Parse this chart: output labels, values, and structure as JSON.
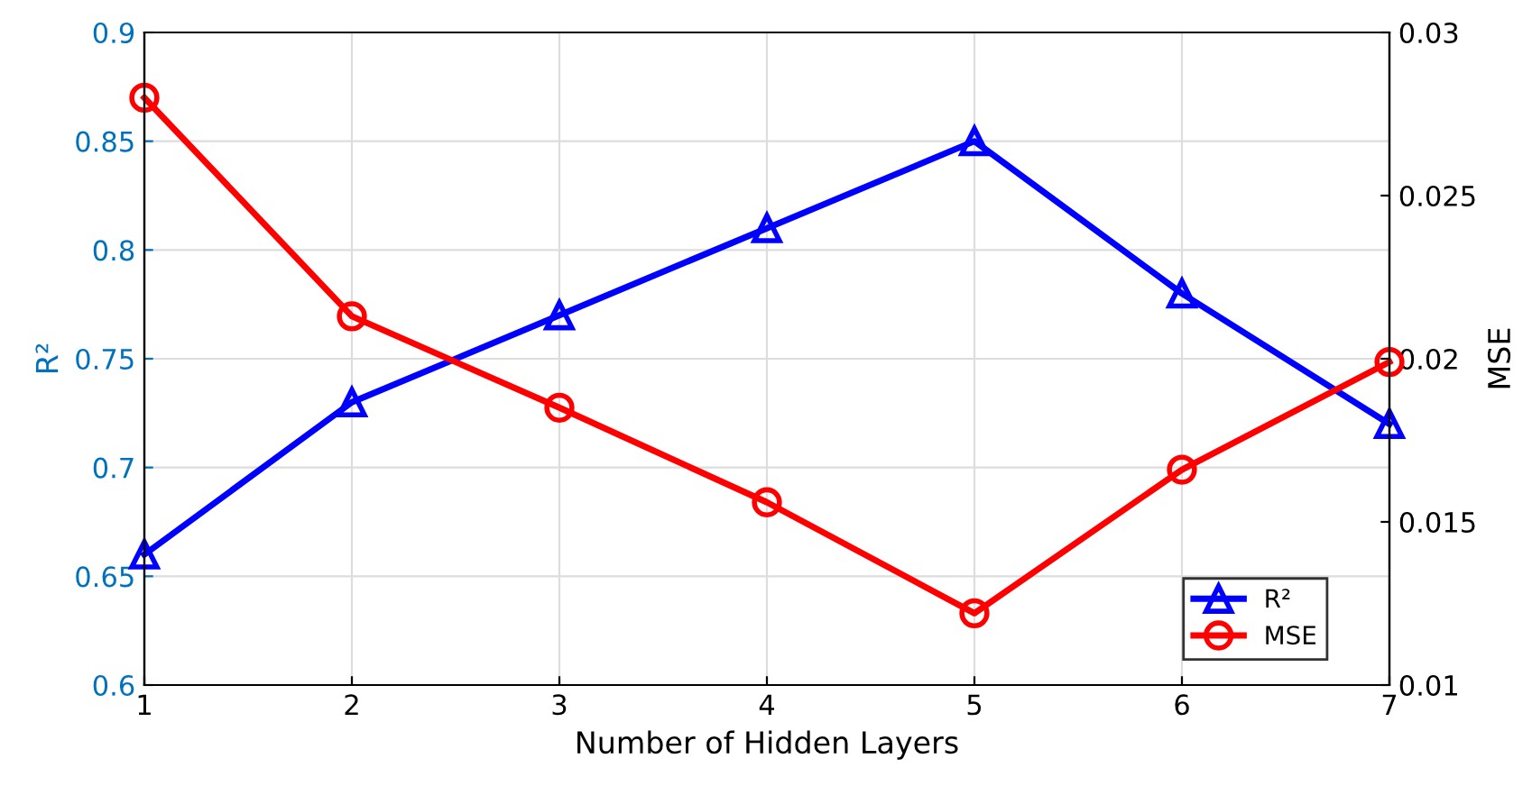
{
  "chart_data": {
    "type": "line",
    "xlabel": "Number of Hidden Layers",
    "ylabel": "R²",
    "y2label": "MSE",
    "x": [
      1,
      2,
      3,
      4,
      5,
      6,
      7
    ],
    "series": [
      {
        "name": "R²",
        "color": "#0000ff",
        "marker": "triangle",
        "values": [
          0.66,
          0.73,
          0.77,
          0.81,
          0.85,
          0.78,
          0.72
        ]
      },
      {
        "name": "MSE",
        "color": "#ff0000",
        "marker": "circle",
        "axis": "y2",
        "values": [
          0.028,
          0.0213,
          0.0185,
          0.0156,
          0.0122,
          0.0166,
          0.0199
        ]
      }
    ],
    "xlim": [
      1,
      7
    ],
    "xticks": [
      1,
      2,
      3,
      4,
      5,
      6,
      7
    ],
    "ylim": [
      0.6,
      0.9
    ],
    "yticks": [
      0.6,
      0.65,
      0.7,
      0.75,
      0.8,
      0.85,
      0.9
    ],
    "y2lim": [
      0.01,
      0.03
    ],
    "y2ticks": [
      0.01,
      0.015,
      0.02,
      0.025,
      0.03
    ],
    "grid": true,
    "legend": "bottom right",
    "line_style": "solid"
  }
}
